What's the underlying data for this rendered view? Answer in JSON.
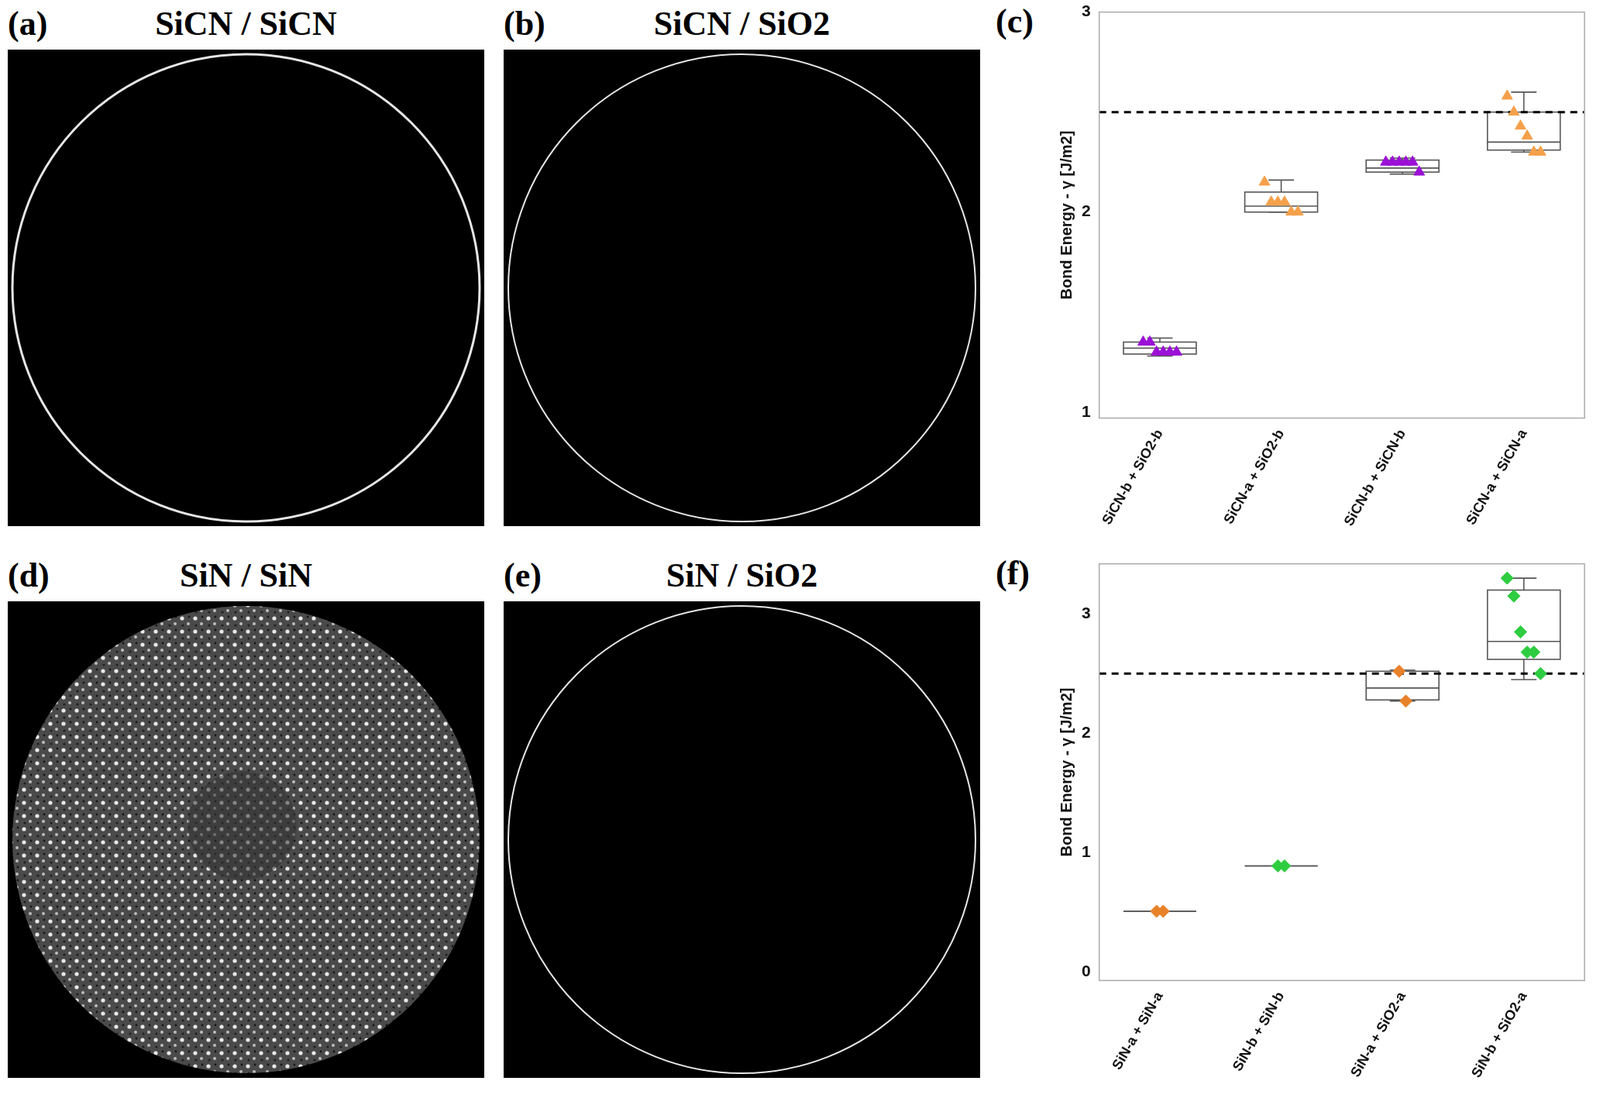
{
  "panels": [
    {
      "label": "(a)",
      "title": "SiCN / SiCN"
    },
    {
      "label": "(b)",
      "title": "SiCN / SiO2"
    },
    {
      "label": "(d)",
      "title": "SiN / SiN"
    },
    {
      "label": "(e)",
      "title": "SiN / SiO2"
    }
  ],
  "chart_data": [
    {
      "panel": "(c)",
      "type": "box",
      "y_label": "Bond Energy - γ [J/m2]",
      "categories": [
        "SiCN-b + SiO2-b",
        "SiCN-a + SiO2-b",
        "SiCN-b + SiCN-b",
        "SiCN-a + SiCN-a"
      ],
      "colors": [
        "#9b10d6",
        "#f5a04a",
        "#9b10d6",
        "#f5a04a"
      ],
      "marker": "triangle",
      "points": [
        [
          1.35,
          1.35,
          1.3,
          1.3,
          1.3,
          1.3
        ],
        [
          2.15,
          2.05,
          2.05,
          2.05,
          2.0,
          2.0
        ],
        [
          2.25,
          2.25,
          2.25,
          2.25,
          2.25,
          2.2
        ],
        [
          2.58,
          2.5,
          2.43,
          2.38,
          2.3,
          2.3
        ]
      ],
      "boxes": [
        {
          "min": 1.28,
          "q1": 1.29,
          "median": 1.32,
          "q3": 1.35,
          "max": 1.37
        },
        {
          "min": 2.0,
          "q1": 2.0,
          "median": 2.03,
          "q3": 2.1,
          "max": 2.16
        },
        {
          "min": 2.19,
          "q1": 2.2,
          "median": 2.22,
          "q3": 2.26,
          "max": 2.27
        },
        {
          "min": 2.3,
          "q1": 2.31,
          "median": 2.35,
          "q3": 2.5,
          "max": 2.6
        }
      ],
      "reference_line": 2.5,
      "ylim": [
        0.97,
        3.0
      ],
      "yticks": [
        1,
        2,
        3
      ],
      "grid": false
    },
    {
      "panel": "(f)",
      "type": "box",
      "y_label": "Bond Energy - γ [J/m2]",
      "categories": [
        "SiN-a + SiN-a",
        "SiN-b + SiN-b",
        "SiN-a + SiO2-a",
        "SiN-b + SiO2-a"
      ],
      "colors": [
        "#e8822a",
        "#2ecc40",
        "#e8822a",
        "#2ecc40"
      ],
      "marker": "diamond",
      "points": [
        [
          0.51,
          0.51
        ],
        [
          0.89,
          0.89
        ],
        [
          2.52,
          2.27
        ],
        [
          3.3,
          3.15,
          2.85,
          2.68,
          2.68,
          2.5
        ]
      ],
      "boxes": [
        {
          "min": 0.51,
          "q1": 0.51,
          "median": 0.51,
          "q3": 0.51,
          "max": 0.51
        },
        {
          "min": 0.89,
          "q1": 0.89,
          "median": 0.89,
          "q3": 0.89,
          "max": 0.89
        },
        {
          "min": 2.27,
          "q1": 2.28,
          "median": 2.38,
          "q3": 2.52,
          "max": 2.53
        },
        {
          "min": 2.45,
          "q1": 2.62,
          "median": 2.77,
          "q3": 3.2,
          "max": 3.3
        }
      ],
      "reference_line": 2.5,
      "ylim": [
        -0.07,
        3.42
      ],
      "yticks": [
        0,
        1,
        2,
        3
      ],
      "grid": false
    }
  ]
}
